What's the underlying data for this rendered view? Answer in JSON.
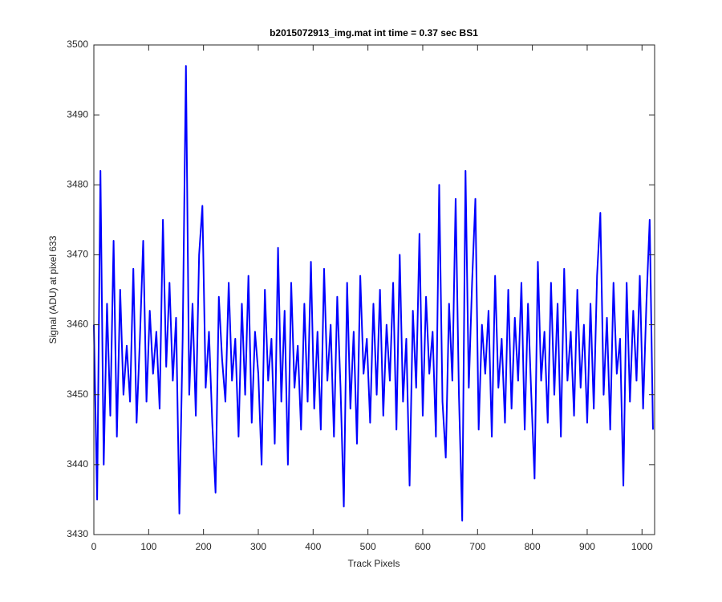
{
  "chart_data": {
    "type": "line",
    "title": "b2015072913_img.mat int time = 0.37 sec   BS1",
    "x_label": "Track Pixels",
    "y_label": "Signal (ADU) at pixel 633",
    "xlim": [
      0,
      1023
    ],
    "ylim": [
      3430,
      3500
    ],
    "xticks": [
      0,
      100,
      200,
      300,
      400,
      500,
      600,
      700,
      800,
      900,
      1000
    ],
    "yticks": [
      3430,
      3440,
      3450,
      3460,
      3470,
      3480,
      3490,
      3500
    ],
    "grid": false,
    "series": [
      {
        "color": "#0000ff",
        "x": [
          0,
          6,
          12,
          18,
          24,
          30,
          36,
          42,
          48,
          54,
          60,
          66,
          72,
          78,
          84,
          90,
          96,
          102,
          108,
          114,
          120,
          126,
          132,
          138,
          144,
          150,
          156,
          162,
          168,
          174,
          180,
          186,
          192,
          198,
          204,
          210,
          216,
          222,
          228,
          234,
          240,
          246,
          252,
          258,
          264,
          270,
          276,
          282,
          288,
          294,
          300,
          306,
          312,
          318,
          324,
          330,
          336,
          342,
          348,
          354,
          360,
          366,
          372,
          378,
          384,
          390,
          396,
          402,
          408,
          414,
          420,
          426,
          432,
          438,
          444,
          450,
          456,
          462,
          468,
          474,
          480,
          486,
          492,
          498,
          504,
          510,
          516,
          522,
          528,
          534,
          540,
          546,
          552,
          558,
          564,
          570,
          576,
          582,
          588,
          594,
          600,
          606,
          612,
          618,
          624,
          630,
          636,
          642,
          648,
          654,
          660,
          666,
          672,
          678,
          684,
          690,
          696,
          702,
          708,
          714,
          720,
          726,
          732,
          738,
          744,
          750,
          756,
          762,
          768,
          774,
          780,
          786,
          792,
          798,
          804,
          810,
          816,
          822,
          828,
          834,
          840,
          846,
          852,
          858,
          864,
          870,
          876,
          882,
          888,
          894,
          900,
          906,
          912,
          918,
          924,
          930,
          936,
          942,
          948,
          954,
          960,
          966,
          972,
          978,
          984,
          990,
          996,
          1002,
          1008,
          1014,
          1020
        ],
        "values": [
          3460,
          3435,
          3482,
          3440,
          3463,
          3447,
          3472,
          3444,
          3465,
          3450,
          3457,
          3449,
          3468,
          3446,
          3458,
          3472,
          3449,
          3462,
          3453,
          3459,
          3448,
          3475,
          3454,
          3466,
          3452,
          3461,
          3433,
          3458,
          3497,
          3450,
          3463,
          3447,
          3470,
          3477,
          3451,
          3459,
          3446,
          3436,
          3464,
          3455,
          3449,
          3466,
          3452,
          3458,
          3444,
          3463,
          3450,
          3467,
          3446,
          3459,
          3453,
          3440,
          3465,
          3452,
          3458,
          3443,
          3471,
          3449,
          3462,
          3440,
          3466,
          3451,
          3457,
          3445,
          3463,
          3449,
          3469,
          3448,
          3459,
          3445,
          3468,
          3452,
          3460,
          3444,
          3464,
          3451,
          3434,
          3466,
          3448,
          3459,
          3443,
          3467,
          3453,
          3458,
          3446,
          3463,
          3450,
          3465,
          3447,
          3460,
          3452,
          3466,
          3445,
          3470,
          3449,
          3458,
          3437,
          3462,
          3451,
          3473,
          3447,
          3464,
          3453,
          3459,
          3444,
          3480,
          3449,
          3441,
          3463,
          3452,
          3478,
          3450,
          3432,
          3482,
          3451,
          3466,
          3478,
          3445,
          3460,
          3453,
          3462,
          3444,
          3467,
          3451,
          3458,
          3446,
          3465,
          3448,
          3461,
          3452,
          3466,
          3445,
          3463,
          3450,
          3438,
          3469,
          3452,
          3459,
          3446,
          3466,
          3450,
          3463,
          3444,
          3468,
          3452,
          3459,
          3447,
          3465,
          3451,
          3460,
          3446,
          3463,
          3448,
          3467,
          3476,
          3450,
          3461,
          3445,
          3466,
          3453,
          3458,
          3437,
          3466,
          3449,
          3462,
          3452,
          3467,
          3448,
          3463,
          3475,
          3445
        ]
      }
    ]
  }
}
